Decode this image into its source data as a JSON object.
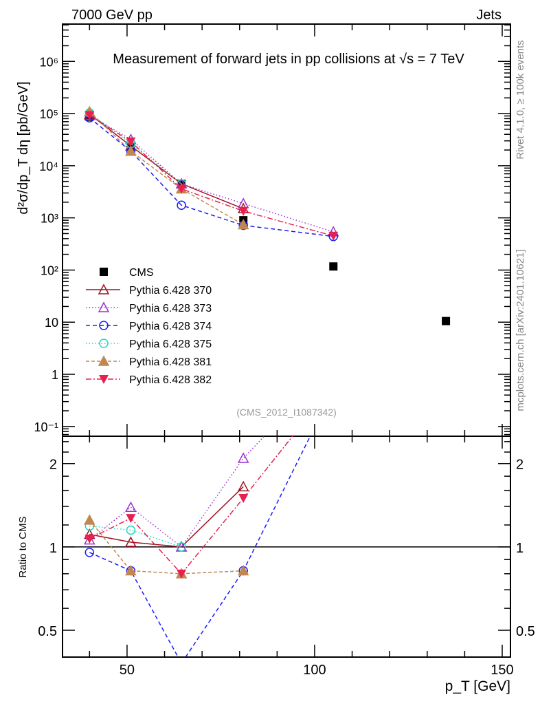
{
  "header": {
    "left": "7000 GeV pp",
    "right": "Jets"
  },
  "side": {
    "rivet": "Rivet 4.1.0, ≥ 100k events",
    "mcplots": "mcplots.cern.ch [arXiv:2401.10621]"
  },
  "chart_data": [
    {
      "type": "line",
      "title": "Measurement of forward jets in pp collisions at √s = 7 TeV",
      "watermark": "(CMS_2012_I1087342)",
      "ylabel": "d²σ/dp_T dη [pb/GeV]",
      "xlabel": "p_T [GeV]",
      "xlim": [
        32.8,
        152.2
      ],
      "ylim": [
        0.065,
        5200000
      ],
      "yscale": "log",
      "xticks": [
        50,
        100,
        150
      ],
      "yticks": [
        {
          "v": 1000000,
          "l": "10⁶"
        },
        {
          "v": 100000,
          "l": "10⁵"
        },
        {
          "v": 10000,
          "l": "10⁴"
        },
        {
          "v": 1000,
          "l": "10³"
        },
        {
          "v": 100,
          "l": "10²"
        },
        {
          "v": 10,
          "l": "10"
        },
        {
          "v": 1,
          "l": "1"
        },
        {
          "v": 0.1,
          "l": "10⁻¹"
        }
      ],
      "legend_position": "bottom-left",
      "x": [
        40,
        51,
        64.5,
        81,
        105,
        135
      ],
      "series": [
        {
          "name": "CMS",
          "color": "#000000",
          "marker": "square",
          "dash": "none",
          "values": [
            87000,
            23000,
            4500,
            900,
            117,
            10.5
          ]
        },
        {
          "name": "Pythia 6.428 370",
          "color": "#a01020",
          "marker": "tri-open",
          "dash": "",
          "values": [
            97000,
            24000,
            4500,
            1500,
            null,
            null
          ]
        },
        {
          "name": "Pythia 6.428 373",
          "color": "#9a32cd",
          "marker": "tri-open",
          "dash": "1.5,3",
          "values": [
            92000,
            32000,
            4500,
            1880,
            540,
            null
          ]
        },
        {
          "name": "Pythia 6.428 374",
          "color": "#1a1aff",
          "marker": "circle-open",
          "dash": "6,4",
          "values": [
            83000,
            19000,
            1750,
            720,
            440,
            null
          ]
        },
        {
          "name": "Pythia 6.428 375",
          "color": "#20d8c0",
          "marker": "circle-open",
          "dash": "1.5,3",
          "values": [
            103000,
            26500,
            4500,
            null,
            null,
            null
          ]
        },
        {
          "name": "Pythia 6.428 381",
          "color": "#c08850",
          "marker": "tri-filled",
          "dash": "5,3",
          "values": [
            109000,
            19000,
            3600,
            740,
            null,
            null
          ]
        },
        {
          "name": "Pythia 6.428 382",
          "color": "#e8204f",
          "marker": "tridown-filled",
          "dash": "8,3,2,3",
          "values": [
            93000,
            29000,
            3600,
            1350,
            450,
            null
          ]
        }
      ]
    },
    {
      "type": "line",
      "ylabel": "Ratio to CMS",
      "xlabel": "p_T [GeV]",
      "xlim": [
        32.8,
        152.2
      ],
      "ylim": [
        0.4,
        2.51
      ],
      "yscale": "log",
      "yticks": [
        {
          "v": 2,
          "l": "2"
        },
        {
          "v": 1,
          "l": "1"
        },
        {
          "v": 0.5,
          "l": "0.5"
        }
      ],
      "x": [
        40,
        51,
        64.5,
        81,
        105
      ],
      "series": [
        {
          "name": "Pythia 6.428 370",
          "values": [
            1.11,
            1.04,
            1.0,
            1.65,
            null
          ]
        },
        {
          "name": "Pythia 6.428 373",
          "values": [
            1.06,
            1.39,
            1.0,
            2.09,
            4.6
          ]
        },
        {
          "name": "Pythia 6.428 374",
          "values": [
            0.955,
            0.82,
            0.38,
            0.82,
            3.7
          ]
        },
        {
          "name": "Pythia 6.428 375",
          "values": [
            1.19,
            1.15,
            1.0,
            null,
            null
          ]
        },
        {
          "name": "Pythia 6.428 381",
          "values": [
            1.25,
            0.82,
            0.8,
            0.82,
            null
          ]
        },
        {
          "name": "Pythia 6.428 382",
          "values": [
            1.07,
            1.27,
            0.8,
            1.5,
            3.85
          ]
        }
      ]
    }
  ]
}
